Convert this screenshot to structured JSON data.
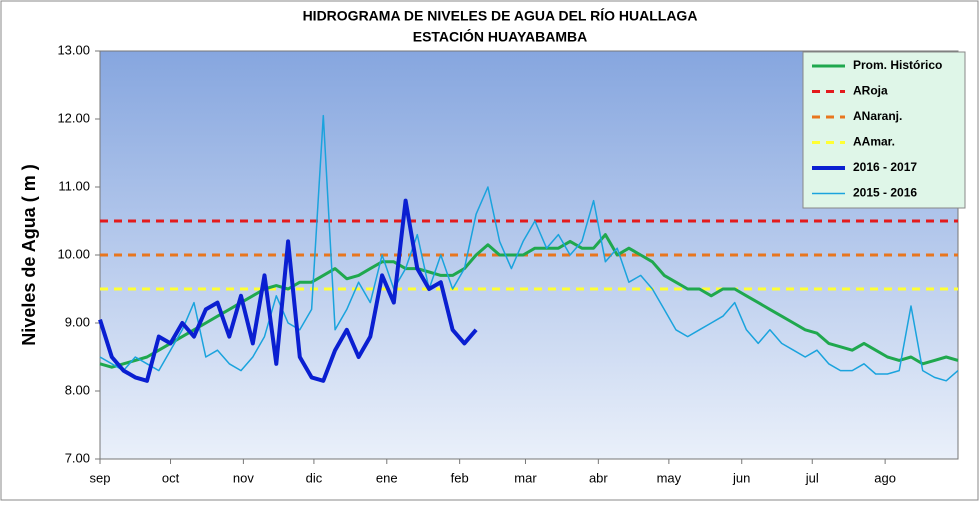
{
  "chart_data": {
    "type": "line",
    "title": "HIDROGRAMA DE NIVELES DE AGUA  DEL RÍO HUALLAGA",
    "subtitle": "ESTACIÓN HUAYABAMBA",
    "y_label": "Niveles de Agua  ( m )",
    "xlim": [
      0,
      365
    ],
    "xticks": [
      {
        "value": 0,
        "label": "sep"
      },
      {
        "value": 30,
        "label": "oct"
      },
      {
        "value": 61,
        "label": "nov"
      },
      {
        "value": 91,
        "label": "dic"
      },
      {
        "value": 122,
        "label": "ene"
      },
      {
        "value": 153,
        "label": "feb"
      },
      {
        "value": 181,
        "label": "mar"
      },
      {
        "value": 212,
        "label": "abr"
      },
      {
        "value": 242,
        "label": "may"
      },
      {
        "value": 273,
        "label": "jun"
      },
      {
        "value": 303,
        "label": "jul"
      },
      {
        "value": 334,
        "label": "ago"
      }
    ],
    "ylim": [
      7,
      13
    ],
    "yticks": [
      {
        "value": 7,
        "label": "7.00"
      },
      {
        "value": 8,
        "label": "8.00"
      },
      {
        "value": 9,
        "label": "9.00"
      },
      {
        "value": 10,
        "label": "10.00"
      },
      {
        "value": 11,
        "label": "11.00"
      },
      {
        "value": 12,
        "label": "12.00"
      },
      {
        "value": 13,
        "label": "13.00"
      }
    ],
    "legend": "top-right",
    "x": [
      0,
      5,
      10,
      15,
      20,
      25,
      30,
      35,
      40,
      45,
      50,
      55,
      60,
      65,
      70,
      75,
      80,
      85,
      90,
      95,
      100,
      105,
      110,
      115,
      120,
      125,
      130,
      135,
      140,
      145,
      150,
      155,
      160,
      165,
      170,
      175,
      180,
      185,
      190,
      195,
      200,
      205,
      210,
      215,
      220,
      225,
      230,
      235,
      240,
      245,
      250,
      255,
      260,
      265,
      270,
      275,
      280,
      285,
      290,
      295,
      300,
      305,
      310,
      315,
      320,
      325,
      330,
      335,
      340,
      345,
      350,
      355,
      360,
      365
    ],
    "series": [
      {
        "name": "Prom. Histórico",
        "color": "#1fa84e",
        "width": 3,
        "values": [
          8.4,
          8.35,
          8.4,
          8.45,
          8.5,
          8.6,
          8.7,
          8.8,
          8.9,
          9.0,
          9.1,
          9.2,
          9.3,
          9.4,
          9.5,
          9.55,
          9.5,
          9.6,
          9.6,
          9.7,
          9.8,
          9.65,
          9.7,
          9.8,
          9.9,
          9.9,
          9.8,
          9.8,
          9.75,
          9.7,
          9.7,
          9.8,
          10.0,
          10.15,
          10.0,
          10.0,
          10.0,
          10.1,
          10.1,
          10.1,
          10.2,
          10.1,
          10.1,
          10.3,
          10.0,
          10.1,
          10.0,
          9.9,
          9.7,
          9.6,
          9.5,
          9.5,
          9.4,
          9.5,
          9.5,
          9.4,
          9.3,
          9.2,
          9.1,
          9.0,
          8.9,
          8.85,
          8.7,
          8.65,
          8.6,
          8.7,
          8.6,
          8.5,
          8.45,
          8.5,
          8.4,
          8.45,
          8.5,
          8.45
        ]
      },
      {
        "name": "ARoja",
        "color": "#e31a1c",
        "width": 3,
        "dashed": true,
        "x": [
          0,
          365
        ],
        "values": [
          10.5,
          10.5
        ]
      },
      {
        "name": "ANaranj.",
        "color": "#e8761e",
        "width": 3,
        "dashed": true,
        "x": [
          0,
          365
        ],
        "values": [
          10.0,
          10.0
        ]
      },
      {
        "name": "AAmar.",
        "color": "#ffff33",
        "width": 3,
        "dashed": true,
        "x": [
          0,
          365
        ],
        "values": [
          9.5,
          9.5
        ]
      },
      {
        "name": "2016 - 2017",
        "color": "#0a1fd1",
        "width": 4,
        "values": [
          9.05,
          8.5,
          8.3,
          8.2,
          8.15,
          8.8,
          8.7,
          9.0,
          8.8,
          9.2,
          9.3,
          8.8,
          9.4,
          8.7,
          9.7,
          8.4,
          10.2,
          8.5,
          8.2,
          8.15,
          8.6,
          8.9,
          8.5,
          8.8,
          9.7,
          9.3,
          10.8,
          9.8,
          9.5,
          9.6,
          8.9,
          8.7,
          8.9,
          null,
          null,
          null,
          null,
          null,
          null,
          null,
          null,
          null,
          null,
          null,
          null,
          null,
          null,
          null,
          null,
          null,
          null,
          null,
          null,
          null,
          null,
          null,
          null,
          null,
          null,
          null,
          null,
          null,
          null,
          null,
          null,
          null,
          null,
          null,
          null,
          null,
          null,
          null,
          null,
          null
        ]
      },
      {
        "name": "2015 - 2016",
        "color": "#1aa3dd",
        "width": 1.5,
        "values": [
          8.5,
          8.4,
          8.3,
          8.5,
          8.4,
          8.3,
          8.6,
          8.9,
          9.3,
          8.5,
          8.6,
          8.4,
          8.3,
          8.5,
          8.8,
          9.4,
          9.0,
          8.9,
          9.2,
          12.05,
          8.9,
          9.2,
          9.6,
          9.3,
          10.0,
          9.5,
          9.8,
          10.3,
          9.5,
          10.0,
          9.5,
          9.8,
          10.6,
          11.0,
          10.2,
          9.8,
          10.2,
          10.5,
          10.1,
          10.3,
          10.0,
          10.2,
          10.8,
          9.9,
          10.1,
          9.6,
          9.7,
          9.5,
          9.2,
          8.9,
          8.8,
          8.9,
          9.0,
          9.1,
          9.3,
          8.9,
          8.7,
          8.9,
          8.7,
          8.6,
          8.5,
          8.6,
          8.4,
          8.3,
          8.3,
          8.4,
          8.25,
          8.25,
          8.3,
          9.25,
          8.3,
          8.2,
          8.15,
          8.3
        ]
      }
    ]
  }
}
